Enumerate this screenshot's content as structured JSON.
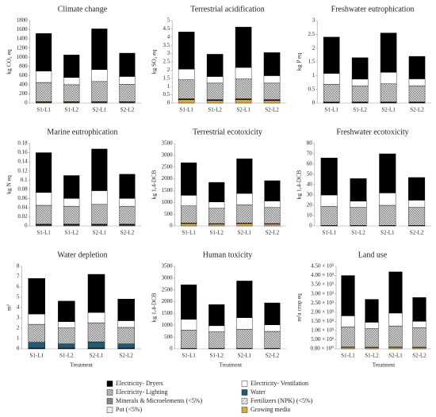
{
  "legend": [
    {
      "name": "Electricity- Dryers",
      "color": "#000000"
    },
    {
      "name": "Electricity- Ventilation",
      "color": "#ffffff"
    },
    {
      "name": "Electricity- Lighting",
      "color": "#c8c8c8",
      "pattern": "cross"
    },
    {
      "name": "Water",
      "color": "#1f5c73"
    },
    {
      "name": "Minerals & Microelements (<5%)",
      "color": "#7f8c88"
    },
    {
      "name": "Fertilizers (NPK) (<5%)",
      "color": "#e0e0e0",
      "pattern": "diag"
    },
    {
      "name": "Pot (<5%)",
      "color": "#eeeeee"
    },
    {
      "name": "Growing media",
      "color": "#d9a93a"
    }
  ],
  "chart_data": [
    {
      "type": "bar",
      "title": "Climate change",
      "ylabel": "kg CO₂ eq",
      "categories": [
        "S1-L1",
        "S1-L2",
        "S2-L1",
        "S2-L2"
      ],
      "ylim": [
        0,
        1800
      ],
      "yticks": [
        0,
        200,
        400,
        600,
        800,
        1000,
        1200,
        1400,
        1600,
        1800
      ],
      "series": [
        {
          "values": [
            820,
            490,
            890,
            510
          ]
        },
        {
          "values": [
            250,
            160,
            260,
            170
          ]
        },
        {
          "values": [
            420,
            370,
            440,
            380
          ]
        },
        {
          "values": [
            3,
            3,
            3,
            3
          ]
        },
        {
          "values": [
            2,
            2,
            2,
            2
          ]
        },
        {
          "values": [
            5,
            5,
            5,
            5
          ]
        },
        {
          "values": [
            5,
            5,
            5,
            5
          ]
        },
        {
          "values": [
            15,
            15,
            15,
            15
          ]
        }
      ]
    },
    {
      "type": "bar",
      "title": "Terrestrial acidification",
      "ylabel": "kg SO₂ eq",
      "categories": [
        "S1-L1",
        "S1-L2",
        "S2-L1",
        "S2-L2"
      ],
      "ylim": [
        0,
        5
      ],
      "yticks": [
        0,
        0.5,
        1,
        1.5,
        2,
        2.5,
        3,
        3.5,
        4,
        4.5,
        5
      ],
      "series": [
        {
          "values": [
            2.25,
            1.35,
            2.45,
            1.4
          ]
        },
        {
          "values": [
            0.65,
            0.4,
            0.7,
            0.45
          ]
        },
        {
          "values": [
            1.15,
            1.0,
            1.2,
            1.0
          ]
        },
        {
          "values": [
            0.01,
            0.01,
            0.01,
            0.01
          ]
        },
        {
          "values": [
            0.01,
            0.01,
            0.01,
            0.01
          ]
        },
        {
          "values": [
            0.02,
            0.02,
            0.02,
            0.02
          ]
        },
        {
          "values": [
            0.02,
            0.02,
            0.02,
            0.02
          ]
        },
        {
          "values": [
            0.2,
            0.15,
            0.2,
            0.15
          ]
        }
      ]
    },
    {
      "type": "bar",
      "title": "Freshwater eutrophication",
      "ylabel": "kg P eq",
      "categories": [
        "S1-L1",
        "S1-L2",
        "S2-L1",
        "S2-L2"
      ],
      "ylim": [
        0,
        3
      ],
      "yticks": [
        0,
        0.5,
        1,
        1.5,
        2,
        2.5,
        3
      ],
      "series": [
        {
          "values": [
            1.32,
            0.78,
            1.43,
            0.82
          ]
        },
        {
          "values": [
            0.4,
            0.25,
            0.42,
            0.25
          ]
        },
        {
          "values": [
            0.64,
            0.58,
            0.66,
            0.59
          ]
        },
        {
          "values": [
            0.01,
            0.01,
            0.01,
            0.01
          ]
        },
        {
          "values": [
            0.01,
            0.01,
            0.01,
            0.01
          ]
        },
        {
          "values": [
            0.01,
            0.01,
            0.01,
            0.01
          ]
        },
        {
          "values": [
            0.01,
            0.01,
            0.01,
            0.01
          ]
        },
        {
          "values": [
            0,
            0,
            0,
            0
          ]
        }
      ]
    },
    {
      "type": "bar",
      "title": "Marine eutrophication",
      "ylabel": "kg N eq",
      "categories": [
        "S1-L1",
        "S1-L2",
        "S2-L1",
        "S2-L2"
      ],
      "ylim": [
        0,
        0.18
      ],
      "yticks": [
        0,
        0.02,
        0.04,
        0.06,
        0.08,
        0.1,
        0.12,
        0.14,
        0.16,
        0.18
      ],
      "series": [
        {
          "values": [
            0.087,
            0.05,
            0.091,
            0.053
          ]
        },
        {
          "values": [
            0.028,
            0.017,
            0.03,
            0.017
          ]
        },
        {
          "values": [
            0.041,
            0.039,
            0.043,
            0.039
          ]
        },
        {
          "values": [
            0.001,
            0.001,
            0.001,
            0.001
          ]
        },
        {
          "values": [
            0.001,
            0.001,
            0.001,
            0.001
          ]
        },
        {
          "values": [
            0.001,
            0.001,
            0.001,
            0.001
          ]
        },
        {
          "values": [
            0.001,
            0.001,
            0.001,
            0.001
          ]
        },
        {
          "values": [
            0,
            0,
            0,
            0
          ]
        }
      ]
    },
    {
      "type": "bar",
      "title": "Terrestrial ecotoxicity",
      "ylabel": "kg 1,4-DCB",
      "categories": [
        "S1-L1",
        "S1-L2",
        "S2-L1",
        "S2-L2"
      ],
      "ylim": [
        0,
        3500
      ],
      "yticks": [
        0,
        500,
        1000,
        1500,
        2000,
        2500,
        3000,
        3500
      ],
      "series": [
        {
          "values": [
            1380,
            830,
            1470,
            860
          ]
        },
        {
          "values": [
            450,
            270,
            480,
            280
          ]
        },
        {
          "values": [
            730,
            650,
            780,
            680
          ]
        },
        {
          "values": [
            5,
            5,
            5,
            5
          ]
        },
        {
          "values": [
            5,
            5,
            5,
            5
          ]
        },
        {
          "values": [
            5,
            5,
            5,
            5
          ]
        },
        {
          "values": [
            5,
            5,
            5,
            5
          ]
        },
        {
          "values": [
            100,
            80,
            100,
            80
          ]
        }
      ]
    },
    {
      "type": "bar",
      "title": "Freshwater ecotoxicity",
      "ylabel": "kg 1,4-DCB",
      "categories": [
        "S1-L1",
        "S1-L2",
        "S2-L1",
        "S2-L2"
      ],
      "ylim": [
        0,
        80
      ],
      "yticks": [
        0,
        10,
        20,
        30,
        40,
        50,
        60,
        70,
        80
      ],
      "series": [
        {
          "values": [
            36,
            22,
            38,
            22
          ]
        },
        {
          "values": [
            11,
            6,
            12,
            7
          ]
        },
        {
          "values": [
            18.5,
            17.5,
            19.5,
            17.5
          ]
        },
        {
          "values": [
            0.1,
            0.1,
            0.1,
            0.1
          ]
        },
        {
          "values": [
            0.1,
            0.1,
            0.1,
            0.1
          ]
        },
        {
          "values": [
            0.1,
            0.1,
            0.1,
            0.1
          ]
        },
        {
          "values": [
            0.1,
            0.1,
            0.1,
            0.1
          ]
        },
        {
          "values": [
            0.1,
            0.1,
            0.1,
            0.1
          ]
        }
      ]
    },
    {
      "type": "bar",
      "title": "Water depletion",
      "ylabel": "m³",
      "xlabel": "Treatment",
      "categories": [
        "S1-L1",
        "S1-L2",
        "S2-L1",
        "S2-L2"
      ],
      "ylim": [
        0,
        8
      ],
      "yticks": [
        0,
        1,
        2,
        3,
        4,
        5,
        6,
        7,
        8
      ],
      "series": [
        {
          "values": [
            3.45,
            2.0,
            3.7,
            2.1
          ]
        },
        {
          "values": [
            1.0,
            0.6,
            1.0,
            0.65
          ]
        },
        {
          "values": [
            1.75,
            1.55,
            1.85,
            1.6
          ]
        },
        {
          "values": [
            0.55,
            0.4,
            0.6,
            0.4
          ]
        },
        {
          "values": [
            0.02,
            0.02,
            0.02,
            0.02
          ]
        },
        {
          "values": [
            0.02,
            0.02,
            0.02,
            0.02
          ]
        },
        {
          "values": [
            0.02,
            0.02,
            0.02,
            0.02
          ]
        },
        {
          "values": [
            0.02,
            0.02,
            0.02,
            0.02
          ]
        }
      ]
    },
    {
      "type": "bar",
      "title": "Human toxicity",
      "ylabel": "kg 1,4-DCB",
      "xlabel": "Treatment",
      "categories": [
        "S1-L1",
        "S1-L2",
        "S2-L1",
        "S2-L2"
      ],
      "ylim": [
        0,
        3500
      ],
      "yticks": [
        0,
        500,
        1000,
        1500,
        2000,
        2500,
        3000,
        3500
      ],
      "series": [
        {
          "values": [
            1470,
            900,
            1560,
            930
          ]
        },
        {
          "values": [
            450,
            260,
            490,
            280
          ]
        },
        {
          "values": [
            780,
            700,
            810,
            720
          ]
        },
        {
          "values": [
            5,
            5,
            5,
            5
          ]
        },
        {
          "values": [
            5,
            5,
            5,
            5
          ]
        },
        {
          "values": [
            5,
            5,
            5,
            5
          ]
        },
        {
          "values": [
            5,
            5,
            5,
            5
          ]
        },
        {
          "values": [
            0,
            0,
            0,
            0
          ]
        }
      ]
    },
    {
      "type": "bar",
      "title": "Land use",
      "ylabel": "m²a crop eq",
      "xlabel": "Treatment",
      "categories": [
        "S1-L1",
        "S1-L2",
        "S2-L1",
        "S2-L2"
      ],
      "ylim": [
        0,
        4500
      ],
      "yticks": [
        {
          "value": 0,
          "label": "0.00 × 10⁰"
        },
        {
          "value": 500,
          "label": "5.00 × 10²"
        },
        {
          "value": 1000,
          "label": "1.00 × 10³"
        },
        {
          "value": 1500,
          "label": "1.50 × 10³"
        },
        {
          "value": 2000,
          "label": "2.00 × 10³"
        },
        {
          "value": 2500,
          "label": "2.50 × 10³"
        },
        {
          "value": 3000,
          "label": "3.00 × 10³"
        },
        {
          "value": 3500,
          "label": "3.50 × 10³"
        },
        {
          "value": 4000,
          "label": "4.00 × 10³"
        },
        {
          "value": 4500,
          "label": "4.50 × 10³"
        }
      ],
      "series": [
        {
          "values": [
            2200,
            1250,
            2250,
            1300
          ]
        },
        {
          "values": [
            600,
            350,
            700,
            350
          ]
        },
        {
          "values": [
            1100,
            1010,
            1150,
            1060
          ]
        },
        {
          "values": [
            5,
            5,
            5,
            5
          ]
        },
        {
          "values": [
            5,
            5,
            5,
            5
          ]
        },
        {
          "values": [
            5,
            5,
            5,
            5
          ]
        },
        {
          "values": [
            5,
            5,
            5,
            5
          ]
        },
        {
          "values": [
            80,
            70,
            80,
            70
          ]
        }
      ]
    }
  ]
}
